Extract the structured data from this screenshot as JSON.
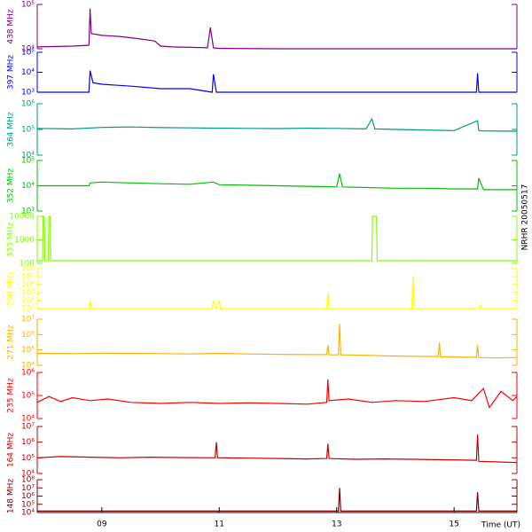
{
  "chart_data": [
    {
      "type": "line",
      "ylabel": "438 MHz",
      "color": "#800080",
      "ylog": true,
      "xlim": [
        7.9,
        16.07
      ],
      "ylim": [
        10000,
        100000
      ],
      "yticks": [
        {
          "value": 10000,
          "label": "10⁴"
        },
        {
          "value": 100000,
          "label": "10⁵"
        }
      ],
      "x": [
        7.9,
        8.5,
        8.78,
        8.8,
        8.82,
        9.0,
        9.3,
        9.6,
        9.9,
        10.0,
        10.2,
        10.8,
        10.85,
        10.9,
        11.0,
        12,
        13,
        14,
        15,
        16.07
      ],
      "values": [
        11000,
        11500,
        12000,
        80000,
        22000,
        20000,
        19000,
        17000,
        15000,
        11500,
        11000,
        10500,
        30000,
        10500,
        10200,
        10000,
        10000,
        10000,
        10000,
        10000
      ]
    },
    {
      "type": "line",
      "ylabel": "397 MHz",
      "color": "#0000ff",
      "ylog": true,
      "xlim": [
        7.9,
        16.07
      ],
      "ylim": [
        1000,
        100000
      ],
      "yticks": [
        {
          "value": 1000,
          "label": "10³"
        },
        {
          "value": 10000,
          "label": "10⁴"
        },
        {
          "value": 100000,
          "label": "10⁵"
        }
      ],
      "x": [
        7.9,
        8.78,
        8.8,
        8.85,
        9.0,
        9.5,
        10.0,
        10.5,
        10.88,
        10.9,
        10.95,
        12,
        14,
        15.38,
        15.4,
        15.42,
        16.07
      ],
      "values": [
        1000,
        1000,
        12000,
        3000,
        2500,
        2000,
        1500,
        1500,
        1000,
        8000,
        1000,
        1000,
        1000,
        1000,
        9000,
        1000,
        1000
      ]
    },
    {
      "type": "line",
      "ylabel": "364 MHz",
      "color": "#009a80",
      "ylog": true,
      "xlim": [
        7.9,
        16.07
      ],
      "ylim": [
        10000,
        1000000
      ],
      "yticks": [
        {
          "value": 10000,
          "label": "10⁴"
        },
        {
          "value": 100000,
          "label": "10⁵"
        },
        {
          "value": 1000000,
          "label": "10⁶"
        }
      ],
      "x": [
        7.9,
        8.5,
        9.0,
        9.5,
        10.0,
        10.5,
        11.0,
        11.5,
        12,
        12.5,
        13,
        13.5,
        13.6,
        13.65,
        14,
        14.5,
        15,
        15.4,
        15.42,
        15.5,
        16.07
      ],
      "values": [
        110000,
        105000,
        120000,
        125000,
        118000,
        115000,
        112000,
        110000,
        108000,
        112000,
        110000,
        105000,
        260000,
        105000,
        100000,
        95000,
        90000,
        220000,
        90000,
        88000,
        85000
      ]
    },
    {
      "type": "line",
      "ylabel": "352 MHz",
      "color": "#00c000",
      "ylog": true,
      "xlim": [
        7.9,
        16.07
      ],
      "ylim": [
        1000,
        100000
      ],
      "yticks": [
        {
          "value": 1000,
          "label": "10³"
        },
        {
          "value": 10000,
          "label": "10⁴"
        },
        {
          "value": 100000,
          "label": "10⁵"
        }
      ],
      "x": [
        7.9,
        8.78,
        8.8,
        9.0,
        9.5,
        10,
        10.5,
        10.9,
        11,
        11.5,
        12,
        12.5,
        13,
        13.05,
        13.1,
        13.5,
        14,
        14.5,
        15,
        15.4,
        15.42,
        15.5,
        16.07
      ],
      "values": [
        10000,
        10000,
        13000,
        14000,
        13000,
        12000,
        11500,
        14000,
        11000,
        10500,
        10000,
        9500,
        9000,
        30000,
        9000,
        8500,
        8000,
        8000,
        7500,
        7500,
        20000,
        7000,
        7000
      ]
    },
    {
      "type": "line",
      "ylabel": "333 MHz",
      "color": "#80ff00",
      "ylog": true,
      "xlim": [
        7.9,
        16.07
      ],
      "ylim": [
        100,
        10000
      ],
      "yticks": [
        100,
        1000,
        10000
      ],
      "x": [
        7.9,
        7.99,
        8.0,
        8.02,
        8.03,
        8.09,
        8.1,
        8.12,
        8.13,
        13.6,
        13.61,
        13.64,
        13.65,
        13.68,
        13.69,
        16.07
      ],
      "values": [
        130,
        130,
        10000,
        10000,
        130,
        130,
        10000,
        10000,
        130,
        130,
        10000,
        10000,
        10000,
        10000,
        130,
        130
      ]
    },
    {
      "type": "line",
      "ylabel": "298 MHz",
      "color": "#ffff00",
      "ylog": true,
      "xlim": [
        7.9,
        16.07
      ],
      "ylim": [
        1000,
        100000000
      ],
      "yticks": [
        {
          "value": 1000,
          "label": "10³"
        },
        {
          "value": 10000,
          "label": "10⁴"
        },
        {
          "value": 100000,
          "label": "10⁵"
        },
        {
          "value": 1000000,
          "label": "10⁶"
        },
        {
          "value": 10000000,
          "label": "10⁷"
        },
        {
          "value": 100000000,
          "label": "10⁸"
        }
      ],
      "x": [
        7.9,
        8.78,
        8.8,
        8.82,
        10.88,
        10.9,
        10.95,
        11.0,
        11.02,
        12.83,
        12.85,
        12.87,
        14.28,
        14.3,
        14.32,
        15.43,
        15.45,
        15.47,
        16.07
      ],
      "values": [
        1000,
        1000,
        10000,
        1000,
        1000,
        8000,
        1000,
        10000,
        1000,
        1000,
        100000,
        1000,
        1000,
        10000000,
        1000,
        1000,
        3000,
        1000,
        1000
      ]
    },
    {
      "type": "line",
      "ylabel": "271 MHz",
      "color": "#ffb000",
      "ylog": true,
      "xlim": [
        7.9,
        16.07
      ],
      "ylim": [
        10000,
        10000000
      ],
      "yticks": [
        {
          "value": 10000,
          "label": "10⁴"
        },
        {
          "value": 100000,
          "label": "10⁵"
        },
        {
          "value": 1000000,
          "label": "10⁶"
        },
        {
          "value": 10000000,
          "label": "10⁷"
        }
      ],
      "x": [
        7.9,
        8.5,
        9.0,
        9.5,
        10.0,
        10.5,
        11.0,
        11.5,
        12.0,
        12.5,
        12.83,
        12.85,
        12.87,
        13.03,
        13.05,
        13.07,
        13.5,
        14.0,
        14.5,
        14.73,
        14.75,
        14.77,
        15.0,
        15.38,
        15.4,
        15.42,
        15.7,
        16.07
      ],
      "values": [
        60000,
        58000,
        62000,
        60000,
        58000,
        55000,
        60000,
        55000,
        52000,
        50000,
        50000,
        200000,
        48000,
        48000,
        5000000,
        48000,
        45000,
        40000,
        38000,
        38000,
        300000,
        36000,
        35000,
        33000,
        200000,
        32000,
        30000,
        32000
      ]
    },
    {
      "type": "line",
      "ylabel": "235 MHz",
      "color": "#ff0000",
      "ylog": true,
      "xlim": [
        7.9,
        16.07
      ],
      "ylim": [
        10000,
        1000000
      ],
      "yticks": [
        {
          "value": 10000,
          "label": "10⁴"
        },
        {
          "value": 100000,
          "label": "10⁵"
        },
        {
          "value": 1000000,
          "label": "10⁶"
        }
      ],
      "x": [
        7.9,
        8.1,
        8.3,
        8.5,
        8.8,
        9.1,
        9.5,
        10.0,
        10.5,
        11.0,
        11.5,
        12.0,
        12.5,
        12.83,
        12.85,
        12.87,
        13.2,
        13.6,
        14.0,
        14.5,
        15.0,
        15.3,
        15.5,
        15.6,
        15.8,
        16.0,
        16.07
      ],
      "values": [
        50000,
        90000,
        55000,
        80000,
        60000,
        70000,
        50000,
        45000,
        50000,
        45000,
        48000,
        45000,
        42000,
        50000,
        500000,
        60000,
        70000,
        50000,
        60000,
        55000,
        80000,
        60000,
        200000,
        30000,
        150000,
        60000,
        90000
      ]
    },
    {
      "type": "line",
      "ylabel": "164 MHz",
      "color": "#c80000",
      "ylog": true,
      "xlim": [
        7.9,
        16.07
      ],
      "ylim": [
        10000,
        10000000
      ],
      "yticks": [
        {
          "value": 10000,
          "label": "10⁴"
        },
        {
          "value": 100000,
          "label": "10⁵"
        },
        {
          "value": 1000000,
          "label": "10⁶"
        },
        {
          "value": 10000000,
          "label": "10⁷"
        }
      ],
      "x": [
        7.9,
        8.3,
        8.8,
        9.3,
        9.8,
        10.3,
        10.93,
        10.95,
        10.97,
        11.5,
        12.0,
        12.5,
        12.83,
        12.85,
        12.87,
        13.3,
        13.8,
        14.3,
        14.8,
        15.38,
        15.4,
        15.42,
        15.7,
        16.07
      ],
      "values": [
        100000,
        120000,
        110000,
        100000,
        110000,
        105000,
        100000,
        1000000,
        100000,
        95000,
        90000,
        85000,
        90000,
        800000,
        90000,
        80000,
        85000,
        80000,
        75000,
        70000,
        3000000,
        60000,
        55000,
        50000
      ]
    },
    {
      "type": "line",
      "ylabel": "148 MHz",
      "color": "#800000",
      "ylog": true,
      "xlim": [
        7.9,
        16.07
      ],
      "ylim": [
        10000,
        100000000
      ],
      "yticks": [
        {
          "value": 10000,
          "label": "10⁴"
        },
        {
          "value": 100000,
          "label": "10⁵"
        },
        {
          "value": 1000000,
          "label": "10⁶"
        },
        {
          "value": 10000000,
          "label": "10⁷"
        },
        {
          "value": 100000000,
          "label": "10⁸"
        }
      ],
      "x": [
        7.9,
        9.0,
        10.0,
        11.0,
        12.0,
        12.8,
        13.03,
        13.05,
        13.07,
        14.0,
        15.0,
        15.38,
        15.4,
        15.42,
        16.07
      ],
      "values": [
        15000,
        15000,
        15000,
        15000,
        15000,
        15000,
        15000,
        10000000,
        15000,
        15000,
        15000,
        15000,
        3000000,
        15000,
        15000
      ],
      "xticks": [
        {
          "value": 9,
          "label": "09"
        },
        {
          "value": 11,
          "label": "11"
        },
        {
          "value": 13,
          "label": "13"
        },
        {
          "value": 15,
          "label": "15"
        }
      ],
      "xlabel": "Time (UT)",
      "annotation": "NRHR 20050517"
    }
  ]
}
